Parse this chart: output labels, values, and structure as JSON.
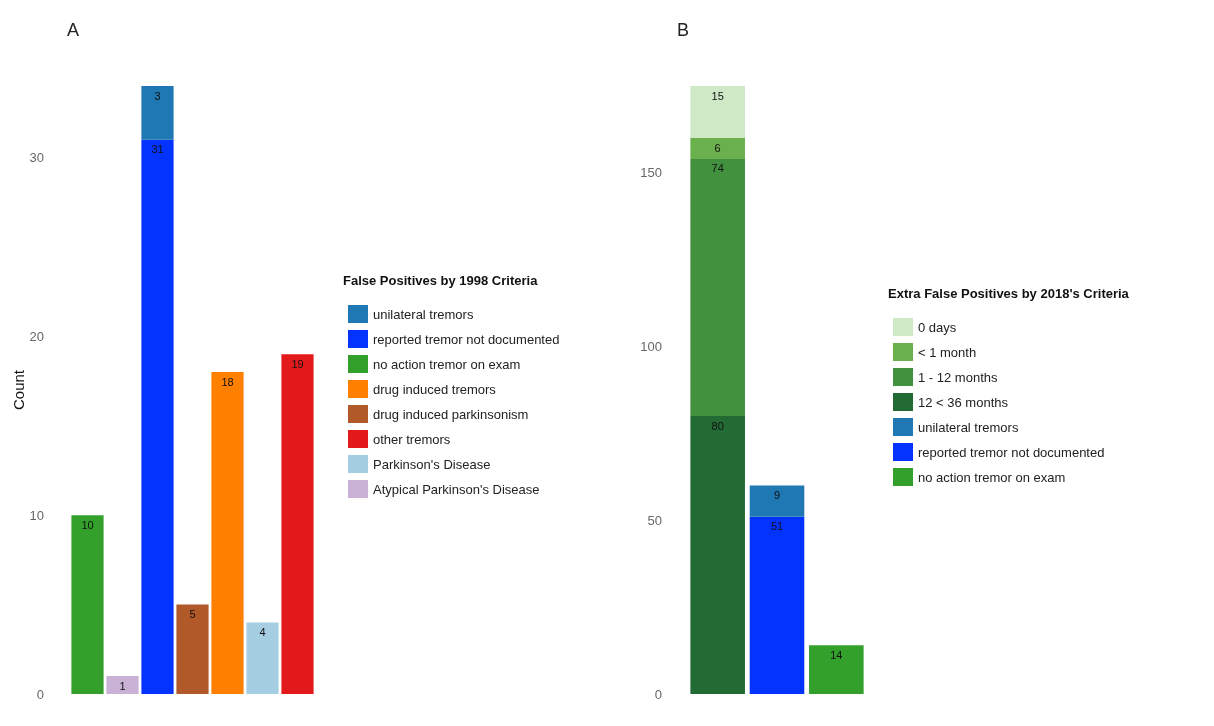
{
  "chart_data": [
    {
      "type": "bar",
      "title": "A",
      "ylabel": "Count",
      "legend_title": "False Positives by 1998 Criteria",
      "stacked": true,
      "data_labels": true,
      "grid": false,
      "legend": "right",
      "ylim": [
        0,
        34
      ],
      "yticks": [
        0,
        10,
        20,
        30
      ],
      "categories": [
        null,
        null,
        null,
        null,
        null,
        null,
        null
      ],
      "series": [
        {
          "name": "Atypical Parkinson's Disease",
          "color": "#cab2d6",
          "values": [
            null,
            1,
            null,
            null,
            null,
            null,
            null
          ]
        },
        {
          "name": "Parkinson's Disease",
          "color": "#a6cee3",
          "values": [
            null,
            null,
            null,
            null,
            null,
            4,
            null
          ]
        },
        {
          "name": "other tremors",
          "color": "#e31a1c",
          "values": [
            null,
            null,
            null,
            null,
            null,
            null,
            19
          ]
        },
        {
          "name": "drug induced parkinsonism",
          "color": "#b15928",
          "values": [
            null,
            null,
            null,
            5,
            null,
            null,
            null
          ]
        },
        {
          "name": "drug induced tremors",
          "color": "#ff7f00",
          "values": [
            null,
            null,
            null,
            null,
            18,
            null,
            null
          ]
        },
        {
          "name": "no action tremor on exam",
          "color": "#33a02c",
          "values": [
            10,
            null,
            null,
            null,
            null,
            null,
            null
          ]
        },
        {
          "name": "reported tremor not documented",
          "color": "#0433ff",
          "values": [
            null,
            null,
            31,
            null,
            null,
            null,
            null
          ]
        },
        {
          "name": "unilateral tremors",
          "color": "#1f78b4",
          "values": [
            null,
            null,
            3,
            null,
            null,
            null,
            null
          ]
        }
      ]
    },
    {
      "type": "bar",
      "title": "B",
      "legend_title": "Extra False Positives by 2018's Criteria",
      "stacked": true,
      "data_labels": true,
      "grid": false,
      "legend": "right",
      "ylim": [
        0,
        175
      ],
      "yticks": [
        0,
        50,
        100,
        150
      ],
      "categories": [
        null,
        null,
        null
      ],
      "series": [
        {
          "name": "no action tremor on exam",
          "color": "#33a02c",
          "values": [
            null,
            null,
            14
          ]
        },
        {
          "name": "reported tremor not documented",
          "color": "#0433ff",
          "values": [
            null,
            51,
            null
          ]
        },
        {
          "name": "unilateral tremors",
          "color": "#1f78b4",
          "values": [
            null,
            9,
            null
          ]
        },
        {
          "name": "12 < 36 months",
          "color": "#226b35",
          "values": [
            80,
            null,
            null
          ]
        },
        {
          "name": "1 - 12 months",
          "color": "#41913f",
          "values": [
            74,
            null,
            null
          ]
        },
        {
          "name": "< 1 month",
          "color": "#6ab04c",
          "values": [
            6,
            null,
            null
          ]
        },
        {
          "name": "0 days",
          "color": "#cfe8c6",
          "values": [
            15,
            null,
            null
          ]
        }
      ]
    }
  ]
}
